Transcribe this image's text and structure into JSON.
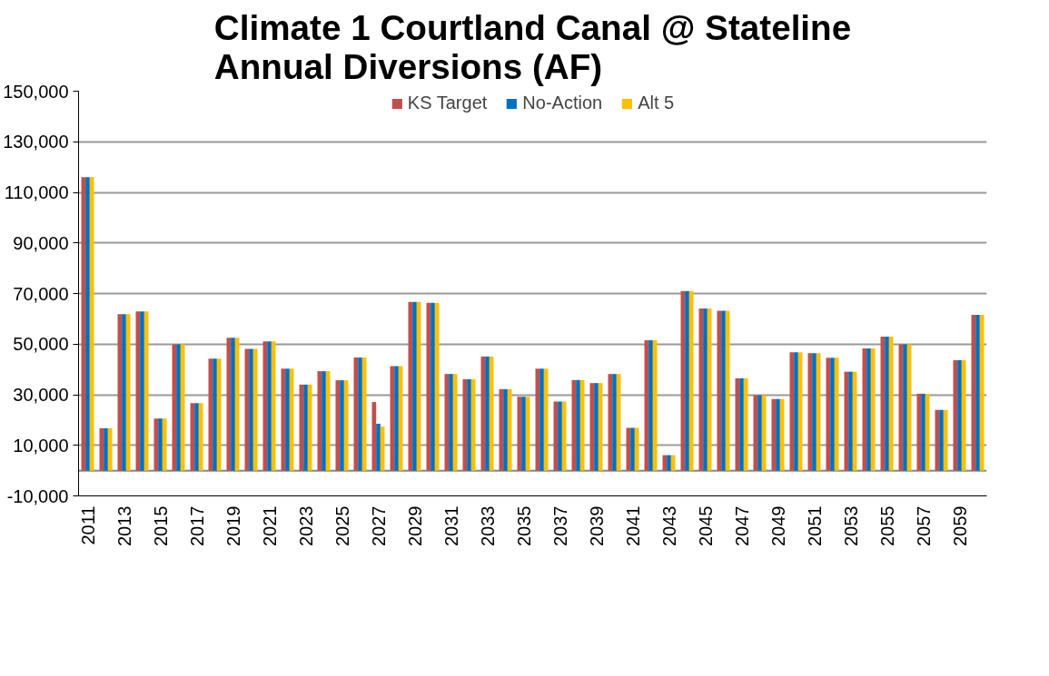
{
  "chart_data": {
    "type": "bar",
    "title": "Climate 1 Courtland Canal @ Stateline\nAnnual Diversions (AF)",
    "categories": [
      "2011",
      null,
      "2013",
      null,
      "2015",
      null,
      "2017",
      null,
      "2019",
      null,
      "2021",
      null,
      "2023",
      null,
      "2025",
      null,
      "2027",
      null,
      "2029",
      null,
      "2031",
      null,
      "2033",
      null,
      "2035",
      null,
      "2037",
      null,
      "2039",
      null,
      "2041",
      null,
      "2043",
      null,
      "2045",
      null,
      "2047",
      null,
      "2049",
      null,
      "2051",
      null,
      "2053",
      null,
      "2055",
      null,
      "2057",
      null,
      "2059",
      null
    ],
    "series": [
      {
        "name": "KS Target",
        "color": "#c0504d",
        "values": [
          116000,
          16700,
          61800,
          62900,
          20600,
          49900,
          26700,
          44300,
          52500,
          48100,
          51100,
          40300,
          34000,
          39300,
          35700,
          44700,
          27100,
          41300,
          66700,
          66300,
          38200,
          36100,
          45100,
          32200,
          29200,
          40300,
          27300,
          35800,
          34600,
          38200,
          16900,
          51500,
          6100,
          71000,
          64100,
          63200,
          36500,
          29800,
          28300,
          46800,
          46400,
          44600,
          39100,
          48300,
          53000,
          49900,
          30400,
          24000,
          43600,
          61600
        ]
      },
      {
        "name": "No-Action",
        "color": "#0070c0",
        "values": [
          116000,
          16700,
          61800,
          62900,
          20600,
          49900,
          26700,
          44300,
          52500,
          48100,
          51100,
          40300,
          34000,
          39300,
          35700,
          44700,
          18500,
          41300,
          66700,
          66300,
          38200,
          36100,
          45100,
          32200,
          29200,
          40300,
          27300,
          35800,
          34600,
          38200,
          16900,
          51500,
          6100,
          71000,
          64100,
          63200,
          36500,
          29800,
          28300,
          46800,
          46400,
          44600,
          39100,
          48300,
          53000,
          49900,
          30400,
          24000,
          43600,
          61600
        ]
      },
      {
        "name": "Alt 5",
        "color": "#ffc000",
        "values": [
          116000,
          16700,
          61800,
          62900,
          20600,
          49900,
          26700,
          44300,
          52500,
          48100,
          51100,
          40300,
          34000,
          39300,
          35700,
          44700,
          17400,
          41300,
          66700,
          66300,
          38200,
          36100,
          45100,
          32200,
          29200,
          40300,
          27300,
          35800,
          34600,
          38200,
          16900,
          51500,
          6100,
          71000,
          64100,
          63200,
          36500,
          29800,
          28300,
          46800,
          46400,
          44600,
          39100,
          48300,
          53000,
          49900,
          30400,
          24000,
          43600,
          61600
        ]
      }
    ],
    "ylim": [
      -10000,
      150000
    ],
    "yticks": [
      {
        "value": -10000,
        "label": "-10,000"
      },
      {
        "value": 10000,
        "label": "10,000"
      },
      {
        "value": 30000,
        "label": "30,000"
      },
      {
        "value": 50000,
        "label": "50,000"
      },
      {
        "value": 70000,
        "label": "70,000"
      },
      {
        "value": 90000,
        "label": "90,000"
      },
      {
        "value": 110000,
        "label": "110,000"
      },
      {
        "value": 130000,
        "label": "130,000"
      },
      {
        "value": 150000,
        "label": "150,000"
      }
    ],
    "ref_lines": [
      {
        "axis": "y",
        "value": 0
      }
    ],
    "grid": "y",
    "legend": "top"
  }
}
